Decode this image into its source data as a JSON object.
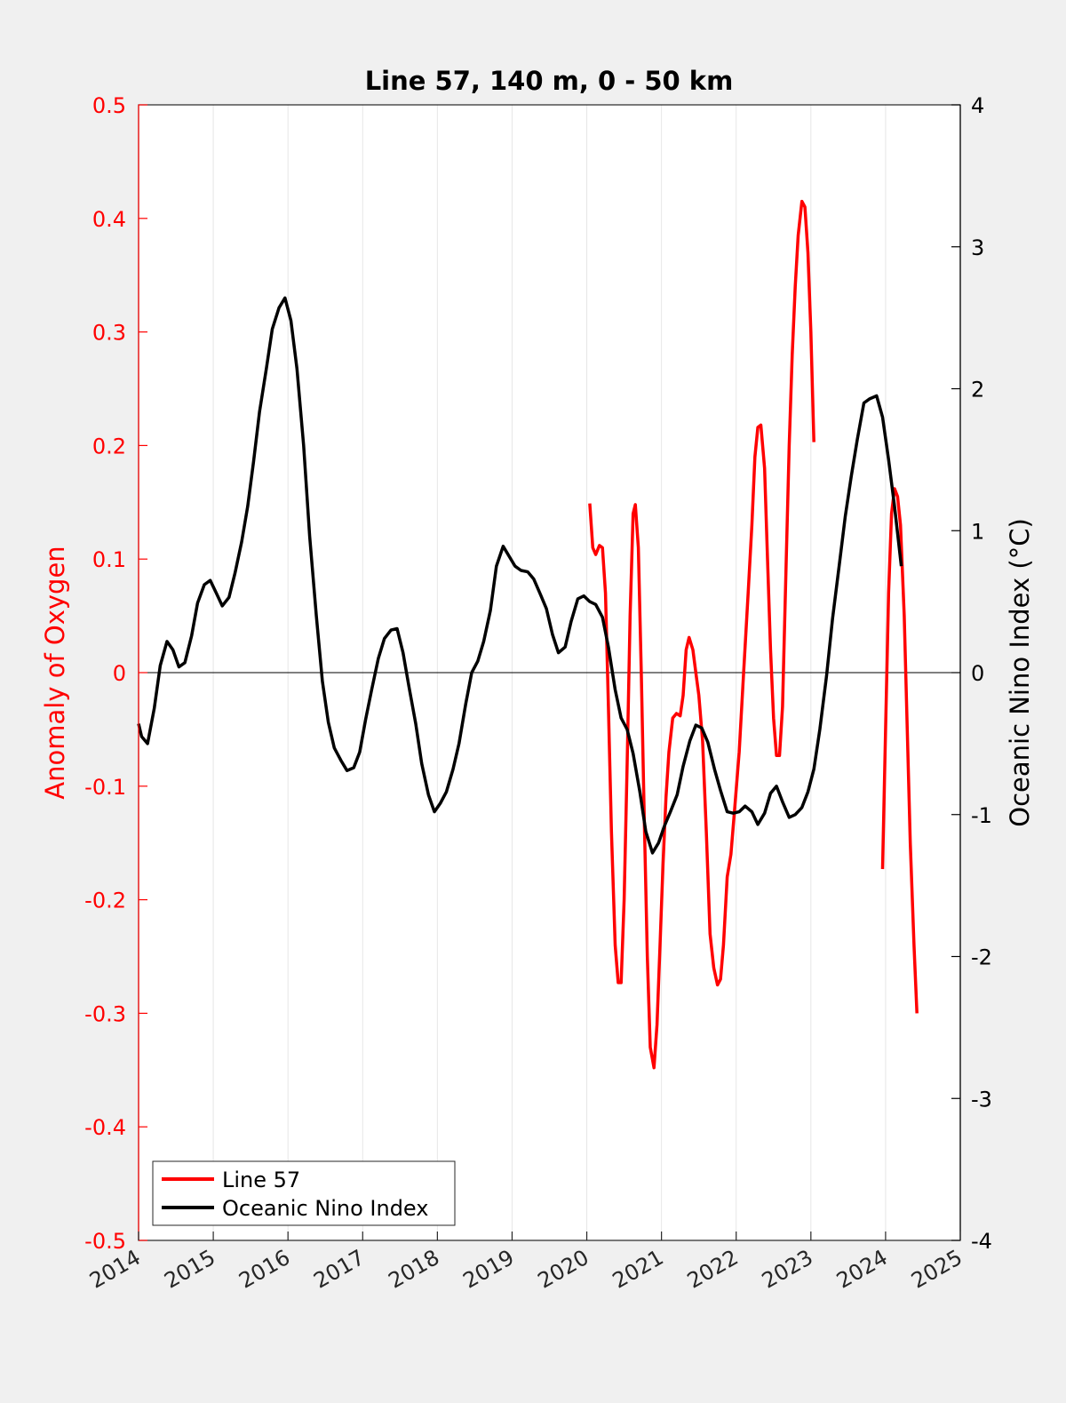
{
  "chart_data": {
    "type": "line",
    "title": "Line 57, 140 m, 0 - 50 km",
    "ylabel_left": "Anomaly of Oxygen",
    "ylabel_right": "Oceanic Nino Index (°C)",
    "xlim": [
      2014,
      2025
    ],
    "ylim_left": [
      -0.5,
      0.5
    ],
    "ylim_right": [
      -4,
      4
    ],
    "x_ticks": [
      "2014",
      "2015",
      "2016",
      "2017",
      "2018",
      "2019",
      "2020",
      "2021",
      "2022",
      "2023",
      "2024",
      "2025"
    ],
    "y_ticks_left": [
      "-0.5",
      "-0.4",
      "-0.3",
      "-0.2",
      "-0.1",
      "0",
      "0.1",
      "0.2",
      "0.3",
      "0.4",
      "0.5"
    ],
    "y_ticks_right": [
      "-4",
      "-3",
      "-2",
      "-1",
      "0",
      "1",
      "2",
      "3",
      "4"
    ],
    "x_grid": true,
    "y_grid": false,
    "zero_line": true,
    "legend_position": "bottom-left",
    "colors": {
      "left_axis": "#ff0000",
      "right_axis": "#000000",
      "background": "#f0f0f0",
      "plot_bg": "#ffffff",
      "grid": "#e6e6e6"
    },
    "series": [
      {
        "name": "Line 57",
        "axis": "left",
        "color": "#ff0000",
        "segments": [
          [
            [
              2020.04,
              0.149
            ],
            [
              2020.08,
              0.11
            ],
            [
              2020.12,
              0.104
            ],
            [
              2020.17,
              0.112
            ],
            [
              2020.21,
              0.11
            ],
            [
              2020.25,
              0.07
            ],
            [
              2020.29,
              -0.03
            ],
            [
              2020.33,
              -0.14
            ],
            [
              2020.38,
              -0.24
            ],
            [
              2020.42,
              -0.273
            ],
            [
              2020.46,
              -0.273
            ],
            [
              2020.5,
              -0.2
            ],
            [
              2020.54,
              -0.08
            ],
            [
              2020.58,
              0.05
            ],
            [
              2020.62,
              0.14
            ],
            [
              2020.65,
              0.148
            ],
            [
              2020.69,
              0.11
            ],
            [
              2020.73,
              0.0
            ],
            [
              2020.77,
              -0.13
            ],
            [
              2020.81,
              -0.25
            ],
            [
              2020.85,
              -0.33
            ],
            [
              2020.9,
              -0.348
            ],
            [
              2020.94,
              -0.31
            ],
            [
              2020.98,
              -0.24
            ],
            [
              2021.02,
              -0.17
            ],
            [
              2021.06,
              -0.11
            ],
            [
              2021.1,
              -0.07
            ],
            [
              2021.15,
              -0.04
            ],
            [
              2021.2,
              -0.036
            ],
            [
              2021.25,
              -0.038
            ],
            [
              2021.29,
              -0.02
            ],
            [
              2021.33,
              0.02
            ],
            [
              2021.37,
              0.031
            ],
            [
              2021.42,
              0.02
            ],
            [
              2021.46,
              0.0
            ],
            [
              2021.5,
              -0.02
            ],
            [
              2021.55,
              -0.06
            ],
            [
              2021.6,
              -0.14
            ],
            [
              2021.65,
              -0.23
            ],
            [
              2021.7,
              -0.26
            ],
            [
              2021.75,
              -0.275
            ],
            [
              2021.79,
              -0.27
            ],
            [
              2021.83,
              -0.24
            ],
            [
              2021.88,
              -0.18
            ],
            [
              2021.93,
              -0.16
            ],
            [
              2021.98,
              -0.12
            ],
            [
              2022.04,
              -0.07
            ],
            [
              2022.1,
              0.0
            ],
            [
              2022.16,
              0.07
            ],
            [
              2022.21,
              0.13
            ],
            [
              2022.25,
              0.19
            ],
            [
              2022.29,
              0.216
            ],
            [
              2022.33,
              0.218
            ],
            [
              2022.38,
              0.18
            ],
            [
              2022.42,
              0.1
            ],
            [
              2022.46,
              0.02
            ],
            [
              2022.5,
              -0.04
            ],
            [
              2022.54,
              -0.073
            ],
            [
              2022.58,
              -0.073
            ],
            [
              2022.62,
              -0.03
            ],
            [
              2022.67,
              0.1
            ],
            [
              2022.71,
              0.2
            ],
            [
              2022.75,
              0.28
            ],
            [
              2022.79,
              0.34
            ],
            [
              2022.83,
              0.385
            ],
            [
              2022.88,
              0.415
            ],
            [
              2022.92,
              0.41
            ],
            [
              2022.96,
              0.37
            ],
            [
              2023.0,
              0.3
            ],
            [
              2023.04,
              0.203
            ]
          ],
          [
            [
              2023.96,
              -0.173
            ],
            [
              2024.0,
              -0.05
            ],
            [
              2024.04,
              0.07
            ],
            [
              2024.08,
              0.14
            ],
            [
              2024.12,
              0.162
            ],
            [
              2024.16,
              0.155
            ],
            [
              2024.2,
              0.13
            ],
            [
              2024.25,
              0.05
            ],
            [
              2024.29,
              -0.05
            ],
            [
              2024.33,
              -0.15
            ],
            [
              2024.38,
              -0.24
            ],
            [
              2024.42,
              -0.3
            ]
          ]
        ]
      },
      {
        "name": "Oceanic Nino Index",
        "axis": "right",
        "color": "#000000",
        "segments": [
          [
            [
              2014.0,
              -0.36
            ],
            [
              2014.04,
              -0.45
            ],
            [
              2014.12,
              -0.5
            ],
            [
              2014.21,
              -0.25
            ],
            [
              2014.29,
              0.05
            ],
            [
              2014.38,
              0.22
            ],
            [
              2014.46,
              0.16
            ],
            [
              2014.54,
              0.04
            ],
            [
              2014.62,
              0.07
            ],
            [
              2014.71,
              0.26
            ],
            [
              2014.79,
              0.49
            ],
            [
              2014.88,
              0.62
            ],
            [
              2014.96,
              0.65
            ],
            [
              2015.04,
              0.56
            ],
            [
              2015.12,
              0.47
            ],
            [
              2015.21,
              0.53
            ],
            [
              2015.29,
              0.7
            ],
            [
              2015.38,
              0.92
            ],
            [
              2015.46,
              1.17
            ],
            [
              2015.54,
              1.49
            ],
            [
              2015.62,
              1.84
            ],
            [
              2015.71,
              2.14
            ],
            [
              2015.79,
              2.42
            ],
            [
              2015.88,
              2.57
            ],
            [
              2015.96,
              2.64
            ],
            [
              2016.04,
              2.48
            ],
            [
              2016.12,
              2.14
            ],
            [
              2016.21,
              1.6
            ],
            [
              2016.29,
              0.96
            ],
            [
              2016.38,
              0.4
            ],
            [
              2016.46,
              -0.06
            ],
            [
              2016.54,
              -0.35
            ],
            [
              2016.62,
              -0.53
            ],
            [
              2016.71,
              -0.62
            ],
            [
              2016.79,
              -0.69
            ],
            [
              2016.88,
              -0.67
            ],
            [
              2016.96,
              -0.56
            ],
            [
              2017.04,
              -0.33
            ],
            [
              2017.12,
              -0.12
            ],
            [
              2017.21,
              0.1
            ],
            [
              2017.29,
              0.24
            ],
            [
              2017.38,
              0.3
            ],
            [
              2017.46,
              0.31
            ],
            [
              2017.54,
              0.14
            ],
            [
              2017.62,
              -0.1
            ],
            [
              2017.71,
              -0.36
            ],
            [
              2017.79,
              -0.64
            ],
            [
              2017.88,
              -0.86
            ],
            [
              2017.96,
              -0.98
            ],
            [
              2018.04,
              -0.92
            ],
            [
              2018.12,
              -0.84
            ],
            [
              2018.21,
              -0.68
            ],
            [
              2018.29,
              -0.5
            ],
            [
              2018.38,
              -0.22
            ],
            [
              2018.46,
              0.0
            ],
            [
              2018.54,
              0.08
            ],
            [
              2018.62,
              0.22
            ],
            [
              2018.71,
              0.44
            ],
            [
              2018.79,
              0.75
            ],
            [
              2018.88,
              0.89
            ],
            [
              2018.96,
              0.82
            ],
            [
              2019.04,
              0.75
            ],
            [
              2019.12,
              0.72
            ],
            [
              2019.21,
              0.71
            ],
            [
              2019.29,
              0.66
            ],
            [
              2019.38,
              0.55
            ],
            [
              2019.46,
              0.45
            ],
            [
              2019.54,
              0.27
            ],
            [
              2019.62,
              0.14
            ],
            [
              2019.71,
              0.18
            ],
            [
              2019.79,
              0.36
            ],
            [
              2019.88,
              0.52
            ],
            [
              2019.96,
              0.54
            ],
            [
              2020.04,
              0.5
            ],
            [
              2020.12,
              0.48
            ],
            [
              2020.21,
              0.39
            ],
            [
              2020.29,
              0.18
            ],
            [
              2020.38,
              -0.12
            ],
            [
              2020.46,
              -0.32
            ],
            [
              2020.54,
              -0.4
            ],
            [
              2020.62,
              -0.57
            ],
            [
              2020.71,
              -0.84
            ],
            [
              2020.79,
              -1.12
            ],
            [
              2020.88,
              -1.27
            ],
            [
              2020.96,
              -1.2
            ],
            [
              2021.04,
              -1.08
            ],
            [
              2021.12,
              -0.98
            ],
            [
              2021.21,
              -0.86
            ],
            [
              2021.29,
              -0.66
            ],
            [
              2021.38,
              -0.48
            ],
            [
              2021.46,
              -0.37
            ],
            [
              2021.54,
              -0.39
            ],
            [
              2021.62,
              -0.49
            ],
            [
              2021.71,
              -0.68
            ],
            [
              2021.79,
              -0.83
            ],
            [
              2021.88,
              -0.98
            ],
            [
              2021.96,
              -0.99
            ],
            [
              2022.04,
              -0.98
            ],
            [
              2022.12,
              -0.94
            ],
            [
              2022.21,
              -0.98
            ],
            [
              2022.29,
              -1.07
            ],
            [
              2022.38,
              -0.99
            ],
            [
              2022.46,
              -0.85
            ],
            [
              2022.54,
              -0.8
            ],
            [
              2022.62,
              -0.91
            ],
            [
              2022.71,
              -1.02
            ],
            [
              2022.79,
              -1.0
            ],
            [
              2022.88,
              -0.95
            ],
            [
              2022.96,
              -0.84
            ],
            [
              2023.04,
              -0.68
            ],
            [
              2023.12,
              -0.4
            ],
            [
              2023.21,
              -0.02
            ],
            [
              2023.29,
              0.38
            ],
            [
              2023.38,
              0.76
            ],
            [
              2023.46,
              1.1
            ],
            [
              2023.54,
              1.38
            ],
            [
              2023.62,
              1.64
            ],
            [
              2023.71,
              1.9
            ],
            [
              2023.79,
              1.93
            ],
            [
              2023.88,
              1.95
            ],
            [
              2023.96,
              1.8
            ],
            [
              2024.04,
              1.5
            ],
            [
              2024.12,
              1.17
            ],
            [
              2024.21,
              0.75
            ]
          ]
        ]
      }
    ]
  }
}
